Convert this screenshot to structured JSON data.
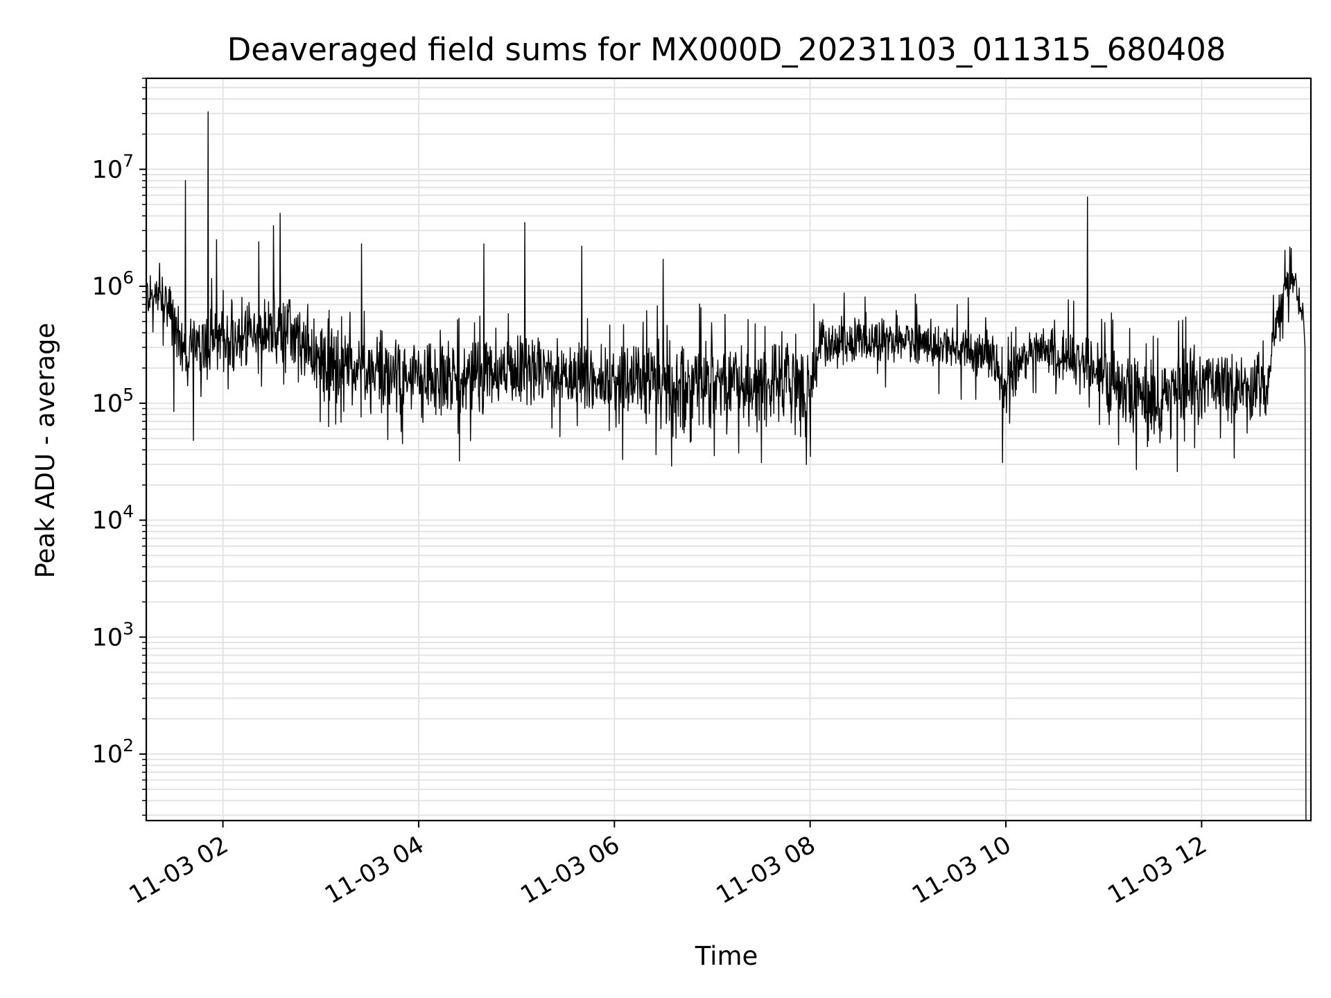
{
  "chart_data": {
    "type": "line",
    "title": "Deaveraged field sums for MX000D_20231103_011315_680408",
    "xlabel": "Time",
    "ylabel": "Peak ADU - average",
    "yscale": "log",
    "grid": true,
    "line_color": "#000000",
    "xlim": [
      "2023-11-03 01:13",
      "2023-11-03 13:07"
    ],
    "ylim": [
      27,
      60000000
    ],
    "x_ticks": [
      {
        "t": "2023-11-03 02:00",
        "label": "11-03 02"
      },
      {
        "t": "2023-11-03 04:00",
        "label": "11-03 04"
      },
      {
        "t": "2023-11-03 06:00",
        "label": "11-03 06"
      },
      {
        "t": "2023-11-03 08:00",
        "label": "11-03 08"
      },
      {
        "t": "2023-11-03 10:00",
        "label": "11-03 10"
      },
      {
        "t": "2023-11-03 12:00",
        "label": "11-03 12"
      }
    ],
    "y_ticks": [
      {
        "exp": 2,
        "base": "10",
        "sup": "2"
      },
      {
        "exp": 3,
        "base": "10",
        "sup": "3"
      },
      {
        "exp": 4,
        "base": "10",
        "sup": "4"
      },
      {
        "exp": 5,
        "base": "10",
        "sup": "5"
      },
      {
        "exp": 6,
        "base": "10",
        "sup": "6"
      },
      {
        "exp": 7,
        "base": "10",
        "sup": "7"
      }
    ],
    "series": [
      {
        "envelope": [
          {
            "t": "2023-11-03 01:13",
            "low": 500000,
            "high": 1500000
          },
          {
            "t": "2023-11-03 01:25",
            "low": 400000,
            "high": 1300000
          },
          {
            "t": "2023-11-03 01:35",
            "low": 150000,
            "high": 600000
          },
          {
            "t": "2023-11-03 02:00",
            "low": 150000,
            "high": 700000
          },
          {
            "t": "2023-11-03 02:40",
            "low": 200000,
            "high": 900000
          },
          {
            "t": "2023-11-03 03:00",
            "low": 100000,
            "high": 500000
          },
          {
            "t": "2023-11-03 04:00",
            "low": 60000,
            "high": 350000
          },
          {
            "t": "2023-11-03 05:00",
            "low": 80000,
            "high": 400000
          },
          {
            "t": "2023-11-03 06:00",
            "low": 80000,
            "high": 350000
          },
          {
            "t": "2023-11-03 06:30",
            "low": 50000,
            "high": 400000
          },
          {
            "t": "2023-11-03 07:30",
            "low": 60000,
            "high": 400000
          },
          {
            "t": "2023-11-03 08:00",
            "low": 45000,
            "high": 300000
          },
          {
            "t": "2023-11-03 08:05",
            "low": 200000,
            "high": 600000
          },
          {
            "t": "2023-11-03 09:00",
            "low": 200000,
            "high": 550000
          },
          {
            "t": "2023-11-03 09:50",
            "low": 150000,
            "high": 450000
          },
          {
            "t": "2023-11-03 10:00",
            "low": 80000,
            "high": 300000
          },
          {
            "t": "2023-11-03 10:20",
            "low": 200000,
            "high": 500000
          },
          {
            "t": "2023-11-03 10:50",
            "low": 100000,
            "high": 400000
          },
          {
            "t": "2023-11-03 11:30",
            "low": 40000,
            "high": 250000
          },
          {
            "t": "2023-11-03 12:00",
            "low": 60000,
            "high": 350000
          },
          {
            "t": "2023-11-03 12:40",
            "low": 70000,
            "high": 300000
          },
          {
            "t": "2023-11-03 12:50",
            "low": 600000,
            "high": 1300000
          },
          {
            "t": "2023-11-03 12:57",
            "low": 900000,
            "high": 1500000
          },
          {
            "t": "2023-11-03 13:02",
            "low": 300000,
            "high": 800000
          }
        ],
        "spikes": [
          {
            "t": "2023-11-03 01:37",
            "value": 8000000
          },
          {
            "t": "2023-11-03 01:51",
            "value": 31000000
          },
          {
            "t": "2023-11-03 01:56",
            "value": 2500000
          },
          {
            "t": "2023-11-03 02:22",
            "value": 2400000
          },
          {
            "t": "2023-11-03 02:31",
            "value": 3300000
          },
          {
            "t": "2023-11-03 02:35",
            "value": 4200000
          },
          {
            "t": "2023-11-03 03:25",
            "value": 2300000
          },
          {
            "t": "2023-11-03 04:40",
            "value": 2300000
          },
          {
            "t": "2023-11-03 05:05",
            "value": 3500000
          },
          {
            "t": "2023-11-03 05:40",
            "value": 2200000
          },
          {
            "t": "2023-11-03 06:30",
            "value": 1700000
          },
          {
            "t": "2023-11-03 10:50",
            "value": 5800000
          },
          {
            "t": "2023-11-03 12:55",
            "value": 2100000
          }
        ],
        "dips": [
          {
            "t": "2023-11-03 01:30",
            "value": 85000
          },
          {
            "t": "2023-11-03 01:42",
            "value": 48000
          },
          {
            "t": "2023-11-03 03:50",
            "value": 45000
          },
          {
            "t": "2023-11-03 04:25",
            "value": 32000
          },
          {
            "t": "2023-11-03 06:05",
            "value": 33000
          },
          {
            "t": "2023-11-03 06:35",
            "value": 29000
          },
          {
            "t": "2023-11-03 07:30",
            "value": 31000
          },
          {
            "t": "2023-11-03 08:00",
            "value": 35000
          },
          {
            "t": "2023-11-03 09:58",
            "value": 31000
          },
          {
            "t": "2023-11-03 11:20",
            "value": 27000
          },
          {
            "t": "2023-11-03 11:45",
            "value": 26000
          },
          {
            "t": "2023-11-03 12:20",
            "value": 34000
          }
        ],
        "end": {
          "t": "2023-11-03 13:04",
          "value": 27
        }
      }
    ]
  }
}
